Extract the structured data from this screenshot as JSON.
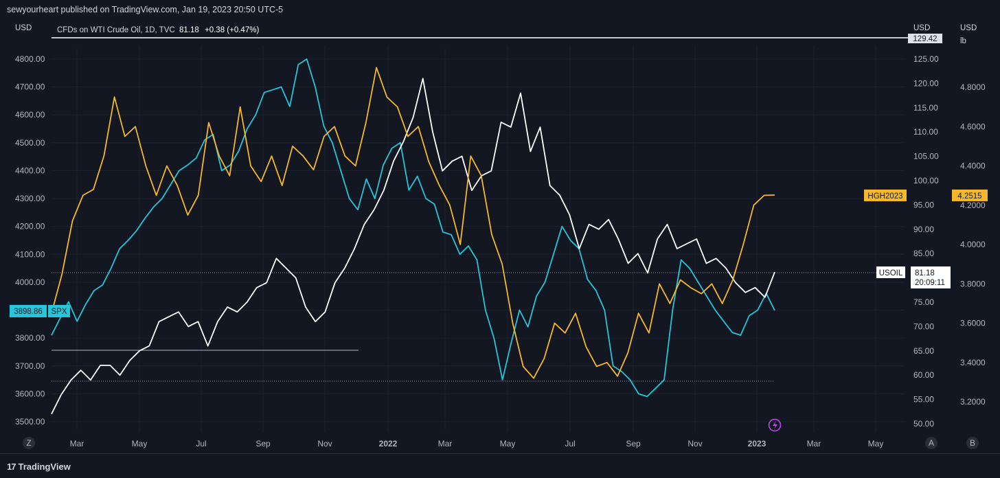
{
  "header": {
    "publisher": "sewyourheart published on TradingView.com, Jan 19, 2023 20:50 UTC-5"
  },
  "footer": {
    "brand": "TradingView",
    "brand_glyph": "17"
  },
  "legend": {
    "symbol": "CFDs on WTI Crude Oil, 1D, TVC",
    "last": "81.18",
    "change": "+0.38 (+0.47%)"
  },
  "axis_units": {
    "left": "USD",
    "mid": "USD",
    "right": "USD",
    "right_sub": "lb"
  },
  "buttons": {
    "z": "Z",
    "a": "A",
    "b": "B"
  },
  "tags": {
    "spx": {
      "label": "SPX",
      "value": "3898.86"
    },
    "usoil": {
      "label": "USOIL",
      "value": "81.18",
      "countdown": "20:09:11"
    },
    "hg": {
      "label": "HGH2023",
      "value": "4.2515"
    },
    "top_value": "129.42"
  },
  "colors": {
    "spx": "#26c6da",
    "usoil": "#ffffff",
    "hg": "#f6b82a",
    "bg": "#131722",
    "grid": "#1e222d",
    "tag_purple": "#cc44ff"
  },
  "chart_data": {
    "type": "line",
    "x_ticks": [
      "Mar",
      "May",
      "Jul",
      "Sep",
      "Nov",
      "2022",
      "Mar",
      "May",
      "Jul",
      "Sep",
      "Nov",
      "2023",
      "Mar",
      "May"
    ],
    "left_axis": {
      "ticks": [
        "4800.00",
        "4700.00",
        "4600.00",
        "4500.00",
        "4400.00",
        "4300.00",
        "4200.00",
        "4100.00",
        "4000.00",
        "3900.00",
        "3800.00",
        "3700.00",
        "3600.00",
        "3500.00"
      ]
    },
    "mid_axis": {
      "ticks": [
        "125.00",
        "120.00",
        "115.00",
        "110.00",
        "105.00",
        "100.00",
        "95.00",
        "90.00",
        "85.00",
        "80.00",
        "75.00",
        "70.00",
        "65.00",
        "60.00",
        "55.00",
        "50.00"
      ]
    },
    "right_axis": {
      "ticks": [
        "4.8000",
        "4.6000",
        "4.4000",
        "4.2000",
        "4.0000",
        "3.8000",
        "3.6000",
        "3.4000",
        "3.2000"
      ]
    },
    "series": [
      {
        "name": "SPX",
        "key": "spx",
        "axis": "left",
        "values": [
          3810,
          3870,
          3930,
          3860,
          3920,
          3970,
          3990,
          4050,
          4120,
          4150,
          4185,
          4230,
          4270,
          4300,
          4350,
          4400,
          4420,
          4445,
          4510,
          4530,
          4400,
          4420,
          4470,
          4550,
          4600,
          4680,
          4690,
          4700,
          4630,
          4780,
          4800,
          4700,
          4560,
          4500,
          4400,
          4300,
          4260,
          4370,
          4300,
          4420,
          4480,
          4500,
          4330,
          4380,
          4300,
          4280,
          4180,
          4170,
          4100,
          4130,
          4080,
          3900,
          3800,
          3650,
          3780,
          3900,
          3840,
          3950,
          4000,
          4100,
          4200,
          4150,
          4120,
          4010,
          3970,
          3900,
          3700,
          3680,
          3650,
          3600,
          3590,
          3620,
          3650,
          3900,
          4080,
          4050,
          4000,
          3950,
          3900,
          3860,
          3820,
          3810,
          3880,
          3900,
          3960,
          3898.86
        ]
      },
      {
        "name": "USOIL",
        "key": "usoil",
        "axis": "mid",
        "values": [
          52,
          56,
          59,
          61,
          59,
          62,
          62,
          60,
          63,
          65,
          66,
          71,
          72,
          73,
          70,
          71,
          66,
          71,
          74,
          73,
          75,
          78,
          79,
          84,
          82,
          80,
          74,
          71,
          73,
          79,
          82,
          86,
          91,
          94,
          98,
          104,
          108,
          113,
          121,
          110,
          102,
          104,
          105,
          98,
          101,
          102,
          112,
          111,
          118,
          106,
          111,
          99,
          97,
          93,
          86,
          91,
          90,
          92,
          88,
          83,
          85,
          81,
          88,
          91,
          86,
          87,
          88,
          83,
          84,
          82,
          79,
          77,
          78,
          76,
          81.18
        ]
      },
      {
        "name": "HGH2023",
        "key": "hg",
        "axis": "right",
        "values": [
          3.65,
          3.85,
          4.12,
          4.25,
          4.28,
          4.45,
          4.75,
          4.55,
          4.6,
          4.4,
          4.25,
          4.4,
          4.3,
          4.15,
          4.25,
          4.62,
          4.45,
          4.35,
          4.7,
          4.4,
          4.32,
          4.45,
          4.3,
          4.5,
          4.45,
          4.38,
          4.55,
          4.6,
          4.45,
          4.4,
          4.62,
          4.9,
          4.75,
          4.7,
          4.55,
          4.6,
          4.42,
          4.3,
          4.2,
          4.0,
          4.45,
          4.35,
          4.05,
          3.9,
          3.6,
          3.38,
          3.32,
          3.42,
          3.6,
          3.55,
          3.65,
          3.48,
          3.38,
          3.4,
          3.33,
          3.45,
          3.65,
          3.55,
          3.8,
          3.7,
          3.82,
          3.78,
          3.75,
          3.8,
          3.7,
          3.82,
          4.0,
          4.2,
          4.25,
          4.2515
        ]
      }
    ],
    "grid": true,
    "legend_position": "top-left"
  }
}
